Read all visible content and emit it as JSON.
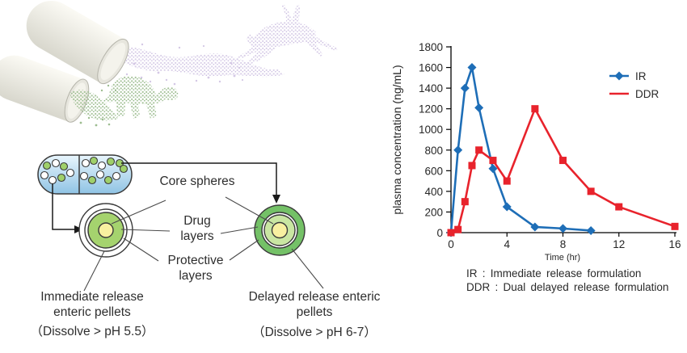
{
  "diagram": {
    "labels": {
      "core_spheres": "Core spheres",
      "drug_layers": "Drug layers",
      "protective_layers": "Protective layers",
      "immediate_pellets": "Immediate release enteric pellets",
      "immediate_dissolve": "（Dissolve > pH 5.5）",
      "delayed_pellets": "Delayed release enteric pellets",
      "delayed_dissolve": "（Dissolve > pH 6-7）"
    }
  },
  "chart_data": {
    "type": "line",
    "title": "",
    "xlabel": "Time (hr)",
    "ylabel": "plasma concentration (ng/mL)",
    "xlim": [
      0,
      16
    ],
    "ylim": [
      0,
      1800
    ],
    "xticks": [
      0,
      4,
      8,
      12,
      16
    ],
    "ytick_interval": 200,
    "grid": false,
    "legend_position": "upper-right",
    "series": [
      {
        "name": "IR",
        "color": "#1e6eb7",
        "marker": "diamond",
        "marker_size": 5.5,
        "legend_sample": "line+marker",
        "x": [
          0,
          0.5,
          1,
          1.5,
          2,
          3,
          4,
          6,
          8,
          10
        ],
        "y": [
          0,
          800,
          1400,
          1600,
          1210,
          620,
          250,
          55,
          40,
          20
        ]
      },
      {
        "name": "DDR",
        "color": "#e8232c",
        "marker": "square",
        "marker_size": 4.5,
        "legend_sample": "line",
        "x": [
          0,
          0.5,
          1,
          1.5,
          2,
          3,
          4,
          6,
          8,
          10,
          12,
          16
        ],
        "y": [
          0,
          30,
          300,
          650,
          800,
          700,
          500,
          1200,
          700,
          400,
          250,
          60
        ]
      }
    ],
    "caption": [
      "IR : Immediate release formulation",
      "DDR : Dual delayed release formulation"
    ]
  },
  "colors": {
    "ir_blue": "#1e6eb7",
    "ddr_red": "#e8232c",
    "capsule_blue_light": "#e9f6fd",
    "capsule_blue_dark": "#8fc3e4",
    "pellet_green": "#a5d36e",
    "delayed_coat_green": "#74c167",
    "drug_layer_light_green": "#c9e6a2",
    "core_yellow": "#f8f0a0",
    "hare_purple": "#d9cfe8",
    "tortoise_green": "#a6c399"
  }
}
